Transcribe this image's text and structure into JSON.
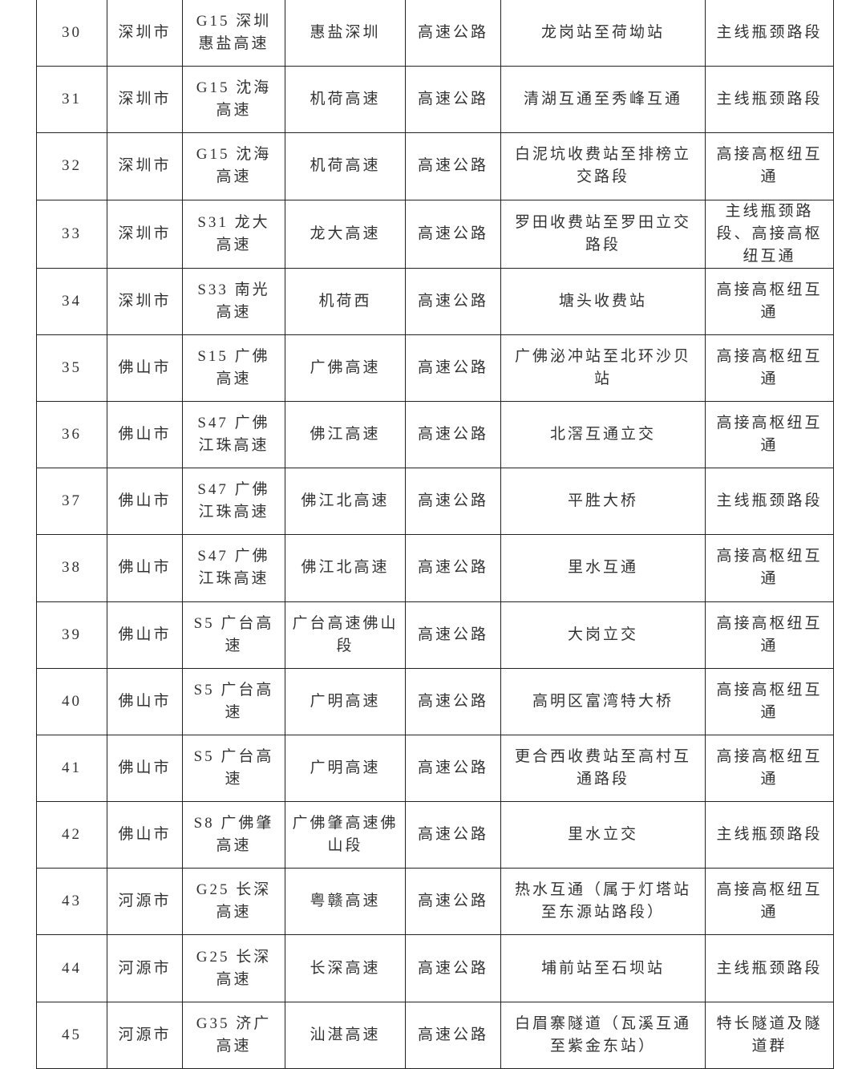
{
  "table": {
    "rows": [
      [
        "30",
        "深圳市",
        "G15 深圳惠盐高速",
        "惠盐深圳",
        "高速公路",
        "龙岗站至荷坳站",
        "主线瓶颈路段"
      ],
      [
        "31",
        "深圳市",
        "G15 沈海高速",
        "机荷高速",
        "高速公路",
        "清湖互通至秀峰互通",
        "主线瓶颈路段"
      ],
      [
        "32",
        "深圳市",
        "G15 沈海高速",
        "机荷高速",
        "高速公路",
        "白泥坑收费站至排榜立交路段",
        "高接高枢纽互通"
      ],
      [
        "33",
        "深圳市",
        "S31 龙大高速",
        "龙大高速",
        "高速公路",
        "罗田收费站至罗田立交路段",
        "主线瓶颈路段、高接高枢纽互通"
      ],
      [
        "34",
        "深圳市",
        "S33 南光高速",
        "机荷西",
        "高速公路",
        "塘头收费站",
        "高接高枢纽互通"
      ],
      [
        "35",
        "佛山市",
        "S15 广佛高速",
        "广佛高速",
        "高速公路",
        "广佛泌冲站至北环沙贝站",
        "高接高枢纽互通"
      ],
      [
        "36",
        "佛山市",
        "S47 广佛江珠高速",
        "佛江高速",
        "高速公路",
        "北滘互通立交",
        "高接高枢纽互通"
      ],
      [
        "37",
        "佛山市",
        "S47 广佛江珠高速",
        "佛江北高速",
        "高速公路",
        "平胜大桥",
        "主线瓶颈路段"
      ],
      [
        "38",
        "佛山市",
        "S47 广佛江珠高速",
        "佛江北高速",
        "高速公路",
        "里水互通",
        "高接高枢纽互通"
      ],
      [
        "39",
        "佛山市",
        "S5 广台高速",
        "广台高速佛山段",
        "高速公路",
        "大岗立交",
        "高接高枢纽互通"
      ],
      [
        "40",
        "佛山市",
        "S5 广台高速",
        "广明高速",
        "高速公路",
        "高明区富湾特大桥",
        "高接高枢纽互通"
      ],
      [
        "41",
        "佛山市",
        "S5 广台高速",
        "广明高速",
        "高速公路",
        "更合西收费站至高村互通路段",
        "高接高枢纽互通"
      ],
      [
        "42",
        "佛山市",
        "S8 广佛肇高速",
        "广佛肇高速佛山段",
        "高速公路",
        "里水立交",
        "主线瓶颈路段"
      ],
      [
        "43",
        "河源市",
        "G25 长深高速",
        "粤赣高速",
        "高速公路",
        "热水互通（属于灯塔站至东源站路段）",
        "高接高枢纽互通"
      ],
      [
        "44",
        "河源市",
        "G25 长深高速",
        "长深高速",
        "高速公路",
        "埔前站至石坝站",
        "主线瓶颈路段"
      ],
      [
        "45",
        "河源市",
        "G35 济广高速",
        "汕湛高速",
        "高速公路",
        "白眉寨隧道（瓦溪互通至紫金东站）",
        "特长隧道及隧道群"
      ]
    ]
  }
}
